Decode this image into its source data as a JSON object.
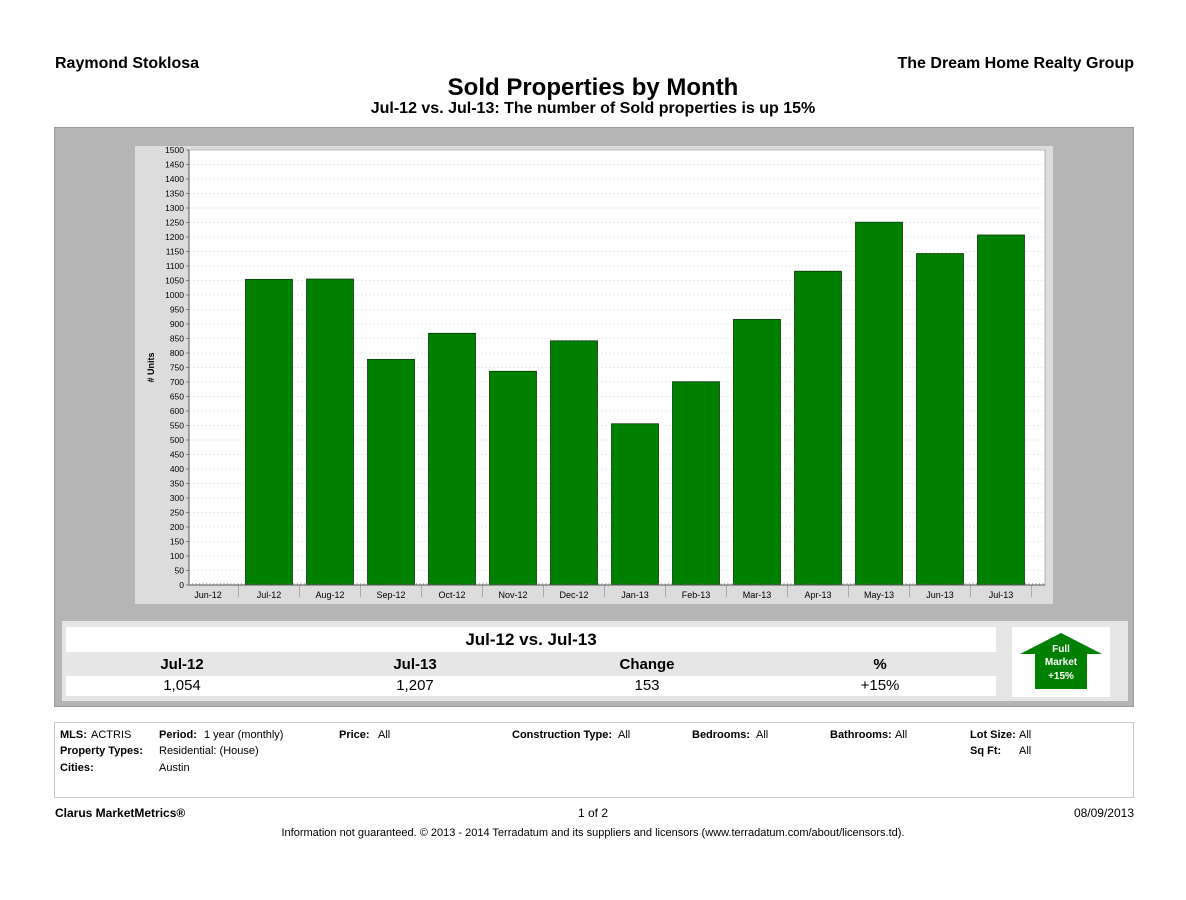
{
  "header": {
    "agent": "Raymond Stoklosa",
    "company": "The Dream Home Realty Group",
    "title": "Sold Properties by Month",
    "subtitle": "Jul-12 vs. Jul-13: The number of Sold properties is up 15%"
  },
  "chart_data": {
    "type": "bar",
    "title": "Sold Properties by Month",
    "ylabel": "# Units",
    "xlabel": "",
    "ylim": [
      0,
      1500
    ],
    "ytick_step": 50,
    "grid": true,
    "bar_color": "#008000",
    "categories": [
      "Jun-12",
      "Jul-12",
      "Aug-12",
      "Sep-12",
      "Oct-12",
      "Nov-12",
      "Dec-12",
      "Jan-13",
      "Feb-13",
      "Mar-13",
      "Apr-13",
      "May-13",
      "Jun-13",
      "Jul-13"
    ],
    "values": [
      0,
      1054,
      1055,
      778,
      868,
      737,
      842,
      556,
      701,
      916,
      1082,
      1251,
      1143,
      1207
    ]
  },
  "summary": {
    "title": "Jul-12 vs. Jul-13",
    "headers": [
      "Jul-12",
      "Jul-13",
      "Change",
      "%"
    ],
    "values": [
      "1,054",
      "1,207",
      "153",
      "+15%"
    ],
    "badge": {
      "line1": "Full",
      "line2": "Market",
      "line3": "+15%",
      "color": "#008000"
    }
  },
  "criteria": {
    "mls_label": "MLS:",
    "mls": "ACTRIS",
    "period_label": "Period:",
    "period": "1 year (monthly)",
    "price_label": "Price:",
    "price": "All",
    "construction_label": "Construction Type:",
    "construction": "All",
    "bedrooms_label": "Bedrooms:",
    "bedrooms": "All",
    "bathrooms_label": "Bathrooms:",
    "bathrooms": "All",
    "lotsize_label": "Lot Size:",
    "lotsize": "All",
    "ptype_label": "Property Types:",
    "ptype": "Residential: (House)",
    "sqft_label": "Sq Ft:",
    "sqft": "All",
    "cities_label": "Cities:",
    "cities": "Austin"
  },
  "footer": {
    "brand": "Clarus MarketMetrics®",
    "page": "1 of 2",
    "date": "08/09/2013",
    "disclaimer": "Information not guaranteed.  © 2013 - 2014 Terradatum and its suppliers and licensors (www.terradatum.com/about/licensors.td)."
  }
}
